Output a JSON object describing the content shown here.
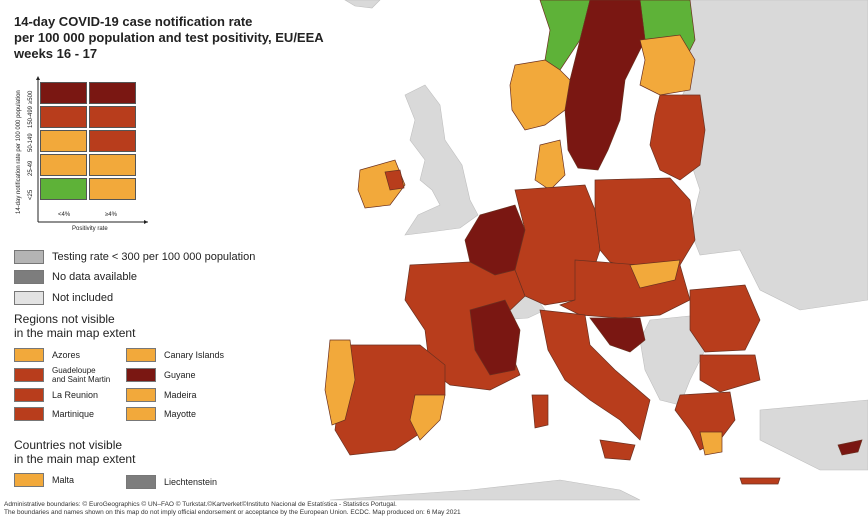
{
  "title": {
    "line1": "14-day COVID-19 case notification rate",
    "line2": "per 100 000 population and test positivity, EU/EEA",
    "line3": "weeks 16 - 17"
  },
  "matrix": {
    "y_axis_title": "14-day notification rate per 100 000 population",
    "x_axis_title": "Positivity rate",
    "rows": [
      {
        "label": "≥500",
        "colors": [
          "#7a1712",
          "#7a1712"
        ]
      },
      {
        "label": "150-499",
        "colors": [
          "#b83d1c",
          "#b83d1c"
        ]
      },
      {
        "label": "50-149",
        "colors": [
          "#f2a93b",
          "#b83d1c"
        ]
      },
      {
        "label": "25-49",
        "colors": [
          "#f2a93b",
          "#f2a93b"
        ]
      },
      {
        "label": "<25",
        "colors": [
          "#5eb238",
          "#f2a93b"
        ]
      }
    ],
    "columns": [
      "<4%",
      "≥4%"
    ]
  },
  "legend": {
    "testing_low": {
      "label": "Testing rate < 300 per 100 000 population",
      "color": "#b4b4b4"
    },
    "no_data": {
      "label": "No data available",
      "color": "#7d7d7d"
    },
    "not_included": {
      "label": "Not included",
      "color": "#e3e3e3"
    }
  },
  "regions_section": {
    "title_line1": "Regions not visible",
    "title_line2": "in the main map extent",
    "items": [
      {
        "label": "Azores",
        "color": "#f2a93b"
      },
      {
        "label": "Guadeloupe and Saint Martin",
        "line1": "Guadeloupe",
        "line2": "and Saint Martin",
        "color": "#b83d1c"
      },
      {
        "label": "La Reunion",
        "color": "#b83d1c"
      },
      {
        "label": "Martinique",
        "color": "#b83d1c"
      },
      {
        "label": "Canary Islands",
        "color": "#f2a93b"
      },
      {
        "label": "Guyane",
        "color": "#7a1712"
      },
      {
        "label": "Madeira",
        "color": "#f2a93b"
      },
      {
        "label": "Mayotte",
        "color": "#f2a93b"
      }
    ]
  },
  "countries_section": {
    "title_line1": "Countries not visible",
    "title_line2": "in the main map extent",
    "items": [
      {
        "label": "Malta",
        "color": "#f2a93b"
      },
      {
        "label": "Liechtenstein",
        "color": "#7d7d7d"
      }
    ]
  },
  "footer": {
    "line1": "Administrative boundaries: © EuroGeographics © UN–FAO © Turkstat.©Kartverket©Instituto Nacional de Estatística - Statistics Portugal.",
    "line2": "The boundaries and names shown on this map do not imply official endorsement or acceptance by the European Union. ECDC. Map produced on: 6 May 2021"
  },
  "colors": {
    "dark_red": "#7a1712",
    "red": "#b83d1c",
    "orange": "#f2a93b",
    "green": "#5eb238",
    "non_eu": "#d9d9d9",
    "sea": "#ffffff",
    "border": "#6b3020"
  }
}
